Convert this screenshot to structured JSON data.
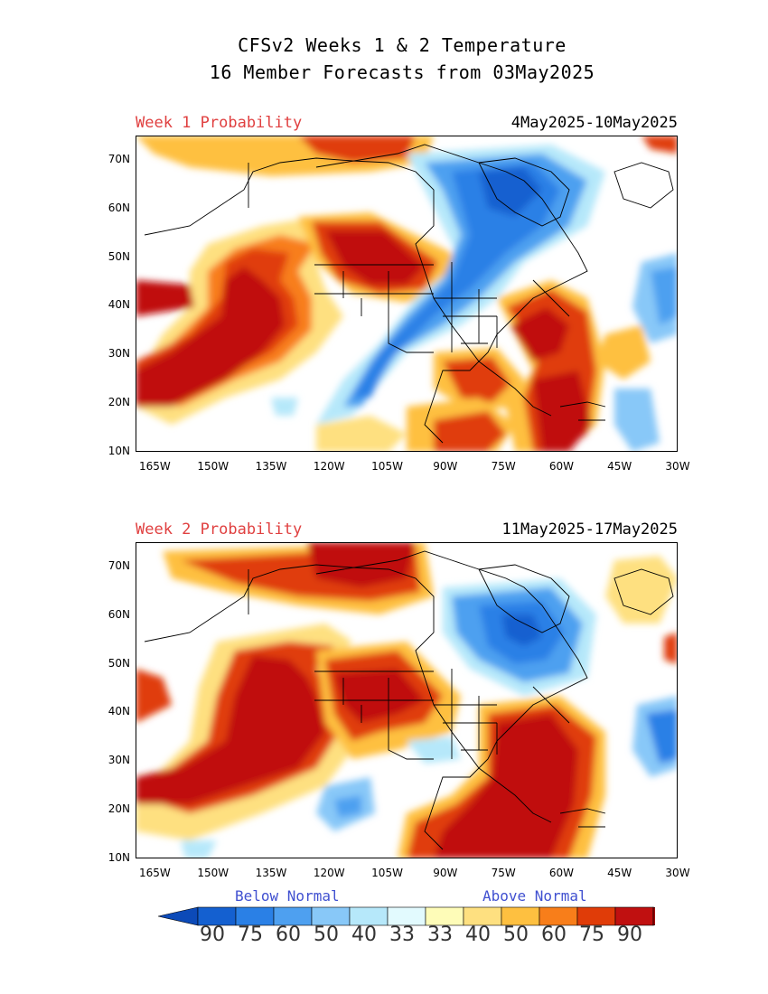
{
  "title": {
    "line1": "CFSv2 Weeks 1 & 2 Temperature",
    "line2": "16 Member Forecasts from 03May2025"
  },
  "panels": [
    {
      "label": "Week 1 Probability",
      "dates": "4May2025-10May2025"
    },
    {
      "label": "Week 2 Probability",
      "dates": "11May2025-17May2025"
    }
  ],
  "axes": {
    "lat_labels": [
      "70N",
      "60N",
      "50N",
      "40N",
      "30N",
      "20N",
      "10N"
    ],
    "lon_labels": [
      "165W",
      "150W",
      "135W",
      "120W",
      "105W",
      "90W",
      "75W",
      "60W",
      "45W",
      "30W"
    ],
    "lat_range": [
      10,
      75
    ],
    "lon_range": [
      -170,
      -30
    ]
  },
  "legend": {
    "below_label": "Below Normal",
    "above_label": "Above Normal",
    "levels": [
      "90",
      "75",
      "60",
      "50",
      "40",
      "33",
      "33",
      "40",
      "50",
      "60",
      "75",
      "90"
    ],
    "below_colors": [
      "#1460d0",
      "#2a80e6",
      "#4ea0f0",
      "#88c8f8",
      "#b6e8fa",
      "#e2fafe"
    ],
    "above_colors": [
      "#fefcb8",
      "#fee080",
      "#fec040",
      "#f87e1a",
      "#e03c08",
      "#c01010"
    ],
    "neutral_color": "#ffffff",
    "extreme_below": "#0c4ab8",
    "extreme_above": "#a00000"
  },
  "colors": {
    "panel_label": "#e04040",
    "legend_label": "#4050d0"
  }
}
